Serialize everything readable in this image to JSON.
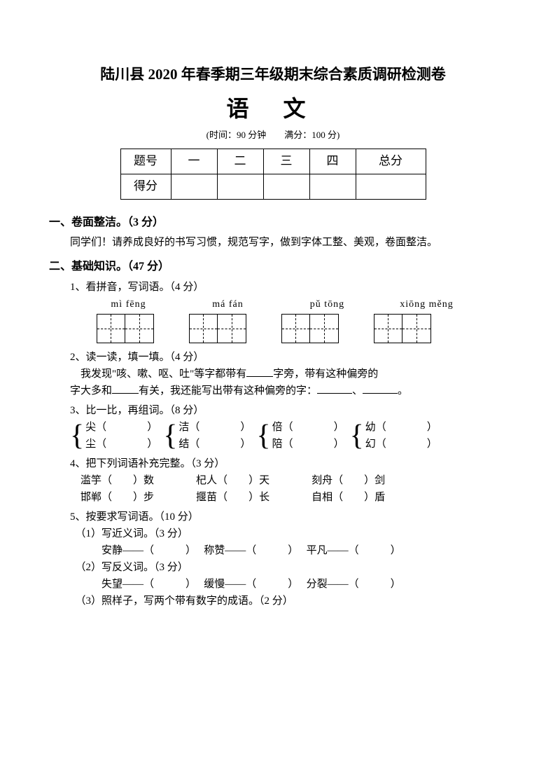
{
  "header": {
    "title": "陆川县 2020 年春季期三年级期末综合素质调研检测卷",
    "subject": "语  文",
    "meta": "(时间：90 分钟　　满分：100 分)"
  },
  "scoreTable": {
    "colLabels": [
      "题号",
      "一",
      "二",
      "三",
      "四",
      "总分"
    ],
    "rowLabel": "得分"
  },
  "s1": {
    "heading": "一、卷面整洁。（3 分）",
    "body": "同学们！请养成良好的书写习惯，规范写字，做到字体工整、美观，卷面整洁。"
  },
  "s2": {
    "heading": "二、基础知识。（47 分）",
    "q1": {
      "title": "1、看拼音，写词语。（4 分）",
      "pinyin": [
        "mì fēng",
        "má fán",
        "pǔ tōng",
        "xiōng měng"
      ]
    },
    "q2": {
      "title": "2、读一读，填一填。（4 分）",
      "line1a": "我发现\"咳、嗽、呕、吐\"等字都带有",
      "line1b": "字旁，带有这种偏旁的",
      "line2a": "字大多和",
      "line2b": "有关，我还能写出带有这种偏旁的字：",
      "line2c": "、",
      "line2d": "。"
    },
    "q3": {
      "title": "3、比一比，再组词。（8 分）",
      "pairs": [
        {
          "top": "尖（",
          "bot": "尘（"
        },
        {
          "top": "洁（",
          "bot": "结（"
        },
        {
          "top": "倍（",
          "bot": "陪（"
        },
        {
          "top": "幼（",
          "bot": "幻（"
        }
      ],
      "close": "）"
    },
    "q4": {
      "title": "4、把下列词语补充完整。（3 分）",
      "row1": [
        {
          "pre": "滥竽（",
          "post": "）数"
        },
        {
          "pre": "杞人（",
          "post": "）天"
        },
        {
          "pre": "刻舟（",
          "post": "）剑"
        }
      ],
      "row2": [
        {
          "pre": "邯郸（",
          "post": "）步"
        },
        {
          "pre": "揠苗（",
          "post": "）长"
        },
        {
          "pre": "自相（",
          "post": "）盾"
        }
      ]
    },
    "q5": {
      "title": "5、按要求写词语。（10 分）",
      "sub1": {
        "title": "（1）写近义词。（3 分）",
        "items": [
          "安静——（　　　）",
          "称赞——（　　　）",
          "平凡——（　　　）"
        ]
      },
      "sub2": {
        "title": "（2）写反义词。（3 分）",
        "items": [
          "失望——（　　　）",
          "缓慢——（　　　）",
          "分裂——（　　　）"
        ]
      },
      "sub3": {
        "title": "（3）照样子，写两个带有数字的成语。（2 分）"
      }
    }
  }
}
